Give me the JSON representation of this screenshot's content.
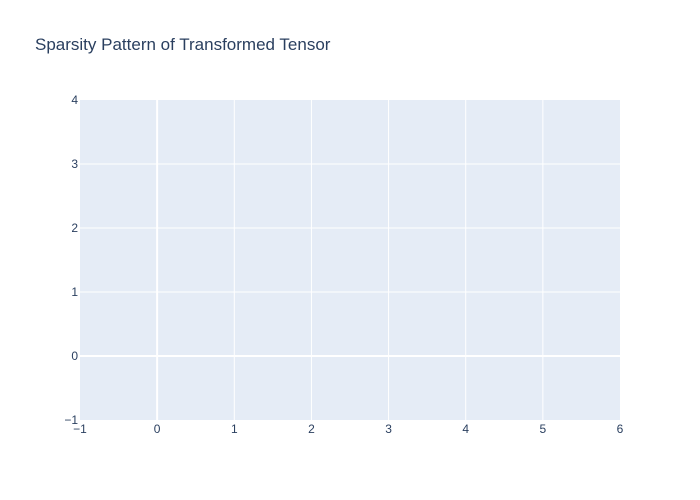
{
  "chart_data": {
    "type": "scatter",
    "title": "Sparsity Pattern of Transformed Tensor",
    "xlabel": "",
    "ylabel": "",
    "xlim": [
      -1,
      6
    ],
    "ylim": [
      -1,
      4
    ],
    "x_ticks": [
      -1,
      0,
      1,
      2,
      3,
      4,
      5,
      6
    ],
    "y_ticks": [
      -1,
      0,
      1,
      2,
      3,
      4
    ],
    "x_tick_labels": [
      "−1",
      "0",
      "1",
      "2",
      "3",
      "4",
      "5",
      "6"
    ],
    "y_tick_labels": [
      "−1",
      "0",
      "1",
      "2",
      "3",
      "4"
    ],
    "grid": true,
    "series": [
      {
        "x": [],
        "y": []
      }
    ],
    "colors": {
      "plot_background": "#e5ecf6",
      "gridline": "#ffffff",
      "text": "#2a3f5f"
    }
  }
}
